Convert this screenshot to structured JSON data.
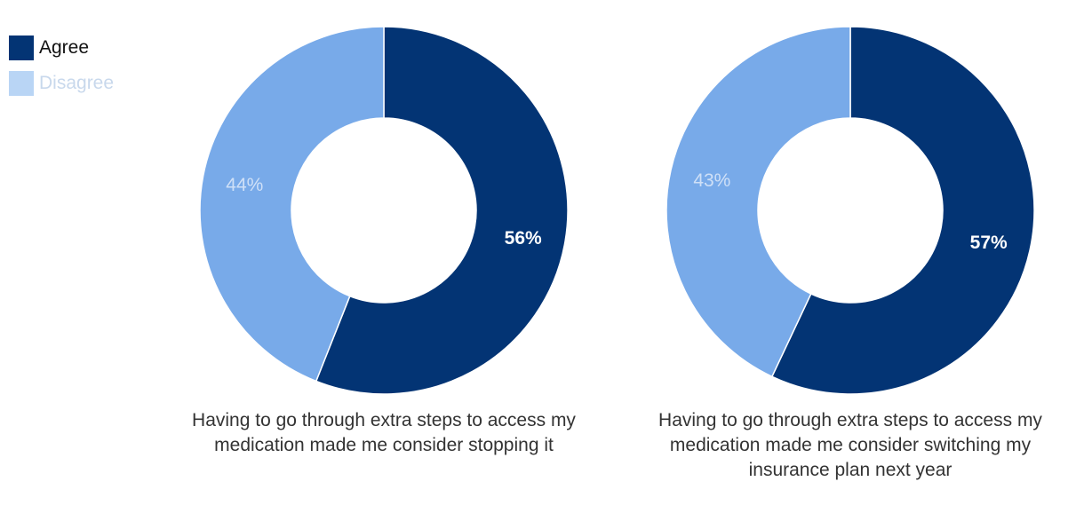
{
  "legend": [
    {
      "label": "Agree",
      "color": "#033474"
    },
    {
      "label": "Disagree",
      "color": "#b9d5f5"
    }
  ],
  "chart_data": [
    {
      "type": "pie",
      "caption": "Having to go through extra steps to access my medication made me consider stopping it",
      "slices": [
        {
          "label": "Agree",
          "value": 56,
          "display": "56%"
        },
        {
          "label": "Disagree",
          "value": 44,
          "display": "44%"
        }
      ]
    },
    {
      "type": "pie",
      "caption": "Having to go through extra steps to access my medication made me consider switching my insurance plan next year",
      "slices": [
        {
          "label": "Agree",
          "value": 57,
          "display": "57%"
        },
        {
          "label": "Disagree",
          "value": 43,
          "display": "43%"
        }
      ]
    }
  ],
  "colors": {
    "agree": "#033474",
    "disagree_slice": "#78aae9",
    "disagree_label": "#cfe0f7",
    "agree_label": "#ffffff"
  }
}
